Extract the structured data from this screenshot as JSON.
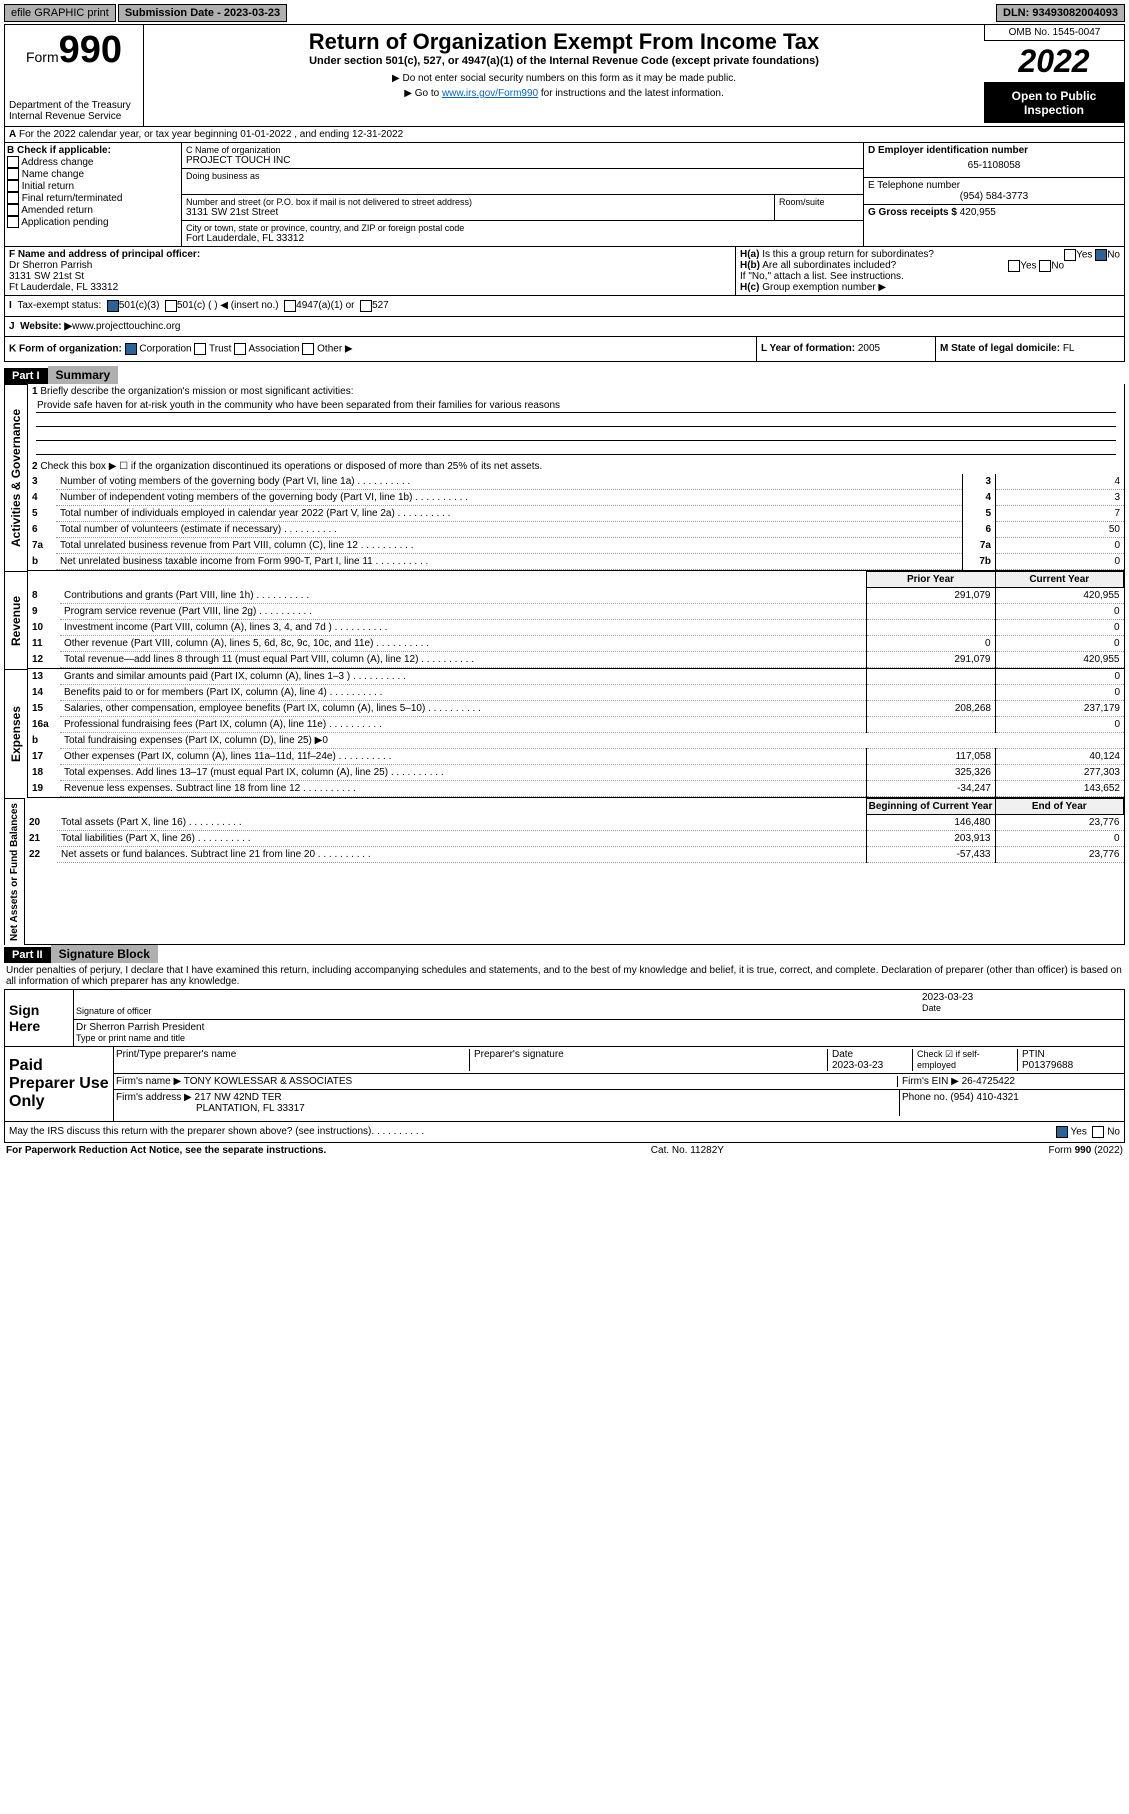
{
  "topbar": {
    "efile": "efile GRAPHIC print",
    "subdate_lbl": "Submission Date - 2023-03-23",
    "dln": "DLN: 93493082004093"
  },
  "header": {
    "form_label": "Form",
    "form_num": "990",
    "dept": "Department of the Treasury",
    "irs": "Internal Revenue Service",
    "title": "Return of Organization Exempt From Income Tax",
    "sub1": "Under section 501(c), 527, or 4947(a)(1) of the Internal Revenue Code (except private foundations)",
    "sub2": "▶ Do not enter social security numbers on this form as it may be made public.",
    "sub3_pre": "▶ Go to ",
    "sub3_link": "www.irs.gov/Form990",
    "sub3_post": " for instructions and the latest information.",
    "omb": "OMB No. 1545-0047",
    "year": "2022",
    "inspection": "Open to Public Inspection"
  },
  "secA": {
    "text": "For the 2022 calendar year, or tax year beginning 01-01-2022   , and ending 12-31-2022"
  },
  "boxB": {
    "title": "B Check if applicable:",
    "items": [
      "Address change",
      "Name change",
      "Initial return",
      "Final return/terminated",
      "Amended return",
      "Application pending"
    ]
  },
  "boxC": {
    "label": "C Name of organization",
    "name": "PROJECT TOUCH INC",
    "dba_lbl": "Doing business as",
    "street_lbl": "Number and street (or P.O. box if mail is not delivered to street address)",
    "room_lbl": "Room/suite",
    "street": "3131 SW 21st Street",
    "city_lbl": "City or town, state or province, country, and ZIP or foreign postal code",
    "city": "Fort Lauderdale, FL  33312"
  },
  "boxD": {
    "label": "D Employer identification number",
    "val": "65-1108058"
  },
  "boxE": {
    "label": "E Telephone number",
    "val": "(954) 584-3773"
  },
  "boxG": {
    "label": "G Gross receipts $",
    "val": "420,955"
  },
  "boxF": {
    "label": "F Name and address of principal officer:",
    "name": "Dr Sherron Parrish",
    "addr1": "3131 SW 21st St",
    "addr2": "Ft Lauderdale, FL  33312"
  },
  "boxH": {
    "a": "Is this a group return for subordinates?",
    "b": "Are all subordinates included?",
    "note": "If \"No,\" attach a list. See instructions.",
    "c": "Group exemption number ▶"
  },
  "boxI": {
    "label": "Tax-exempt status:",
    "opts": [
      "501(c)(3)",
      "501(c) (  ) ◀ (insert no.)",
      "4947(a)(1) or",
      "527"
    ]
  },
  "boxJ": {
    "label": "Website: ▶",
    "val": "www.projecttouchinc.org"
  },
  "boxK": {
    "label": "K Form of organization:",
    "opts": [
      "Corporation",
      "Trust",
      "Association",
      "Other ▶"
    ]
  },
  "boxL": {
    "label": "L Year of formation:",
    "val": "2005"
  },
  "boxM": {
    "label": "M State of legal domicile:",
    "val": "FL"
  },
  "part1": {
    "hdr": "Part I",
    "title": "Summary"
  },
  "gov": {
    "q1": "Briefly describe the organization's mission or most significant activities:",
    "mission": "Provide safe haven for at-risk youth in the community who have been separated from their families for various reasons",
    "q2": "Check this box ▶ ☐ if the organization discontinued its operations or disposed of more than 25% of its net assets.",
    "rows": [
      {
        "n": "3",
        "t": "Number of voting members of the governing body (Part VI, line 1a)",
        "box": "3",
        "v": "4"
      },
      {
        "n": "4",
        "t": "Number of independent voting members of the governing body (Part VI, line 1b)",
        "box": "4",
        "v": "3"
      },
      {
        "n": "5",
        "t": "Total number of individuals employed in calendar year 2022 (Part V, line 2a)",
        "box": "5",
        "v": "7"
      },
      {
        "n": "6",
        "t": "Total number of volunteers (estimate if necessary)",
        "box": "6",
        "v": "50"
      },
      {
        "n": "7a",
        "t": "Total unrelated business revenue from Part VIII, column (C), line 12",
        "box": "7a",
        "v": "0"
      },
      {
        "n": "b",
        "t": "Net unrelated business taxable income from Form 990-T, Part I, line 11",
        "box": "7b",
        "v": "0"
      }
    ]
  },
  "cols": {
    "prior": "Prior Year",
    "current": "Current Year",
    "boy": "Beginning of Current Year",
    "eoy": "End of Year"
  },
  "rev": [
    {
      "n": "8",
      "t": "Contributions and grants (Part VIII, line 1h)",
      "p": "291,079",
      "c": "420,955"
    },
    {
      "n": "9",
      "t": "Program service revenue (Part VIII, line 2g)",
      "p": "",
      "c": "0"
    },
    {
      "n": "10",
      "t": "Investment income (Part VIII, column (A), lines 3, 4, and 7d )",
      "p": "",
      "c": "0"
    },
    {
      "n": "11",
      "t": "Other revenue (Part VIII, column (A), lines 5, 6d, 8c, 9c, 10c, and 11e)",
      "p": "0",
      "c": "0"
    },
    {
      "n": "12",
      "t": "Total revenue—add lines 8 through 11 (must equal Part VIII, column (A), line 12)",
      "p": "291,079",
      "c": "420,955"
    }
  ],
  "exp": [
    {
      "n": "13",
      "t": "Grants and similar amounts paid (Part IX, column (A), lines 1–3 )",
      "p": "",
      "c": "0"
    },
    {
      "n": "14",
      "t": "Benefits paid to or for members (Part IX, column (A), line 4)",
      "p": "",
      "c": "0"
    },
    {
      "n": "15",
      "t": "Salaries, other compensation, employee benefits (Part IX, column (A), lines 5–10)",
      "p": "208,268",
      "c": "237,179"
    },
    {
      "n": "16a",
      "t": "Professional fundraising fees (Part IX, column (A), line 11e)",
      "p": "",
      "c": "0"
    },
    {
      "n": "b",
      "t": "Total fundraising expenses (Part IX, column (D), line 25) ▶0",
      "p": null,
      "c": null
    },
    {
      "n": "17",
      "t": "Other expenses (Part IX, column (A), lines 11a–11d, 11f–24e)",
      "p": "117,058",
      "c": "40,124"
    },
    {
      "n": "18",
      "t": "Total expenses. Add lines 13–17 (must equal Part IX, column (A), line 25)",
      "p": "325,326",
      "c": "277,303"
    },
    {
      "n": "19",
      "t": "Revenue less expenses. Subtract line 18 from line 12",
      "p": "-34,247",
      "c": "143,652"
    }
  ],
  "net": [
    {
      "n": "20",
      "t": "Total assets (Part X, line 16)",
      "p": "146,480",
      "c": "23,776"
    },
    {
      "n": "21",
      "t": "Total liabilities (Part X, line 26)",
      "p": "203,913",
      "c": "0"
    },
    {
      "n": "22",
      "t": "Net assets or fund balances. Subtract line 21 from line 20",
      "p": "-57,433",
      "c": "23,776"
    }
  ],
  "vlabels": {
    "gov": "Activities & Governance",
    "rev": "Revenue",
    "exp": "Expenses",
    "net": "Net Assets or Fund Balances"
  },
  "part2": {
    "hdr": "Part II",
    "title": "Signature Block",
    "decl": "Under penalties of perjury, I declare that I have examined this return, including accompanying schedules and statements, and to the best of my knowledge and belief, it is true, correct, and complete. Declaration of preparer (other than officer) is based on all information of which preparer has any knowledge."
  },
  "sign": {
    "here": "Sign Here",
    "date": "2023-03-23",
    "sig_lbl": "Signature of officer",
    "date_lbl": "Date",
    "name": "Dr Sherron Parrish  President",
    "name_lbl": "Type or print name and title"
  },
  "paid": {
    "title": "Paid Preparer Use Only",
    "h1": "Print/Type preparer's name",
    "h2": "Preparer's signature",
    "h3": "Date",
    "h3v": "2023-03-23",
    "h4": "Check ☑ if self-employed",
    "h5_lbl": "PTIN",
    "h5": "P01379688",
    "firm_lbl": "Firm's name  ▶",
    "firm": "TONY KOWLESSAR & ASSOCIATES",
    "ein_lbl": "Firm's EIN ▶",
    "ein": "26-4725422",
    "addr_lbl": "Firm's address ▶",
    "addr1": "217 NW 42ND TER",
    "addr2": "PLANTATION, FL  33317",
    "phone_lbl": "Phone no.",
    "phone": "(954) 410-4321"
  },
  "footer": {
    "q": "May the IRS discuss this return with the preparer shown above? (see instructions)",
    "paperwork": "For Paperwork Reduction Act Notice, see the separate instructions.",
    "cat": "Cat. No. 11282Y",
    "form": "Form 990 (2022)",
    "yes": "Yes",
    "no": "No"
  }
}
